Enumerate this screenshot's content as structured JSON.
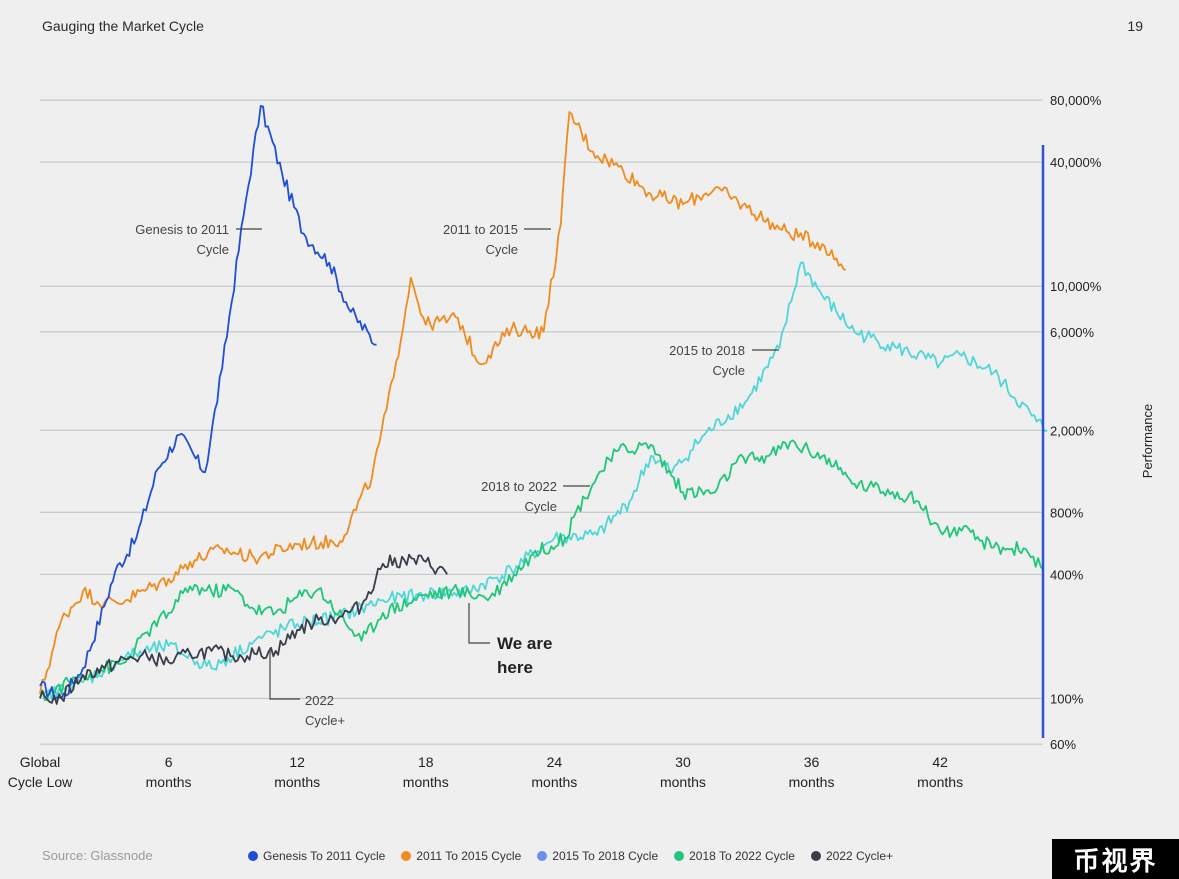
{
  "header": {
    "title": "Gauging the Market Cycle",
    "page_number": "19"
  },
  "footer": {
    "source": "Source: Glassnode"
  },
  "watermark": {
    "text": "币视界"
  },
  "chart_data": {
    "type": "line",
    "ylabel": "Performance",
    "y_scale": "log",
    "y_ticks": [
      {
        "value": 60,
        "label": "60%"
      },
      {
        "value": 100,
        "label": "100%"
      },
      {
        "value": 400,
        "label": "400%"
      },
      {
        "value": 800,
        "label": "800%"
      },
      {
        "value": 2000,
        "label": "2,000%"
      },
      {
        "value": 6000,
        "label": "6,000%"
      },
      {
        "value": 10000,
        "label": "10,000%"
      },
      {
        "value": 40000,
        "label": "40,000%"
      },
      {
        "value": 80000,
        "label": "80,000%"
      }
    ],
    "x_ticks": [
      {
        "value": 0,
        "line1": "Global",
        "line2": "Cycle Low"
      },
      {
        "value": 6,
        "line1": "6",
        "line2": "months"
      },
      {
        "value": 12,
        "line1": "12",
        "line2": "months"
      },
      {
        "value": 18,
        "line1": "18",
        "line2": "months"
      },
      {
        "value": 24,
        "line1": "24",
        "line2": "months"
      },
      {
        "value": 30,
        "line1": "30",
        "line2": "months"
      },
      {
        "value": 36,
        "line1": "36",
        "line2": "months"
      },
      {
        "value": 42,
        "line1": "42",
        "line2": "months"
      }
    ],
    "xlim": [
      0,
      46.8
    ],
    "ylim": [
      60,
      100000
    ],
    "series": [
      {
        "name": "Genesis To 2011 Cycle",
        "color": "#1f4fd6",
        "points": [
          [
            0,
            115
          ],
          [
            1.0,
            100
          ],
          [
            2.0,
            140
          ],
          [
            3.0,
            280
          ],
          [
            3.5,
            410
          ],
          [
            4.5,
            600
          ],
          [
            5.5,
            1300
          ],
          [
            6.5,
            1900
          ],
          [
            7.7,
            1250
          ],
          [
            8.5,
            4000
          ],
          [
            9.5,
            22000
          ],
          [
            10.3,
            75000
          ],
          [
            11.3,
            35000
          ],
          [
            12.3,
            18000
          ],
          [
            13.5,
            13000
          ],
          [
            14.5,
            7500
          ],
          [
            15.7,
            5200
          ]
        ]
      },
      {
        "name": "2011 To 2015 Cycle",
        "color": "#f08c1e",
        "points": [
          [
            0,
            105
          ],
          [
            1.0,
            240
          ],
          [
            2.0,
            330
          ],
          [
            3.0,
            290
          ],
          [
            4.0,
            300
          ],
          [
            5.0,
            340
          ],
          [
            6.0,
            380
          ],
          [
            7.0,
            460
          ],
          [
            8.5,
            530
          ],
          [
            10.0,
            480
          ],
          [
            12.0,
            560
          ],
          [
            14.0,
            580
          ],
          [
            15.5,
            1200
          ],
          [
            16.5,
            3600
          ],
          [
            17.3,
            11000
          ],
          [
            18.0,
            6500
          ],
          [
            19.5,
            7000
          ],
          [
            20.5,
            4200
          ],
          [
            22.0,
            6200
          ],
          [
            23.5,
            6000
          ],
          [
            24.3,
            20000
          ],
          [
            24.7,
            70000
          ],
          [
            25.8,
            45000
          ],
          [
            27.0,
            38000
          ],
          [
            28.5,
            28000
          ],
          [
            30.0,
            25000
          ],
          [
            31.5,
            30000
          ],
          [
            33.0,
            24000
          ],
          [
            34.5,
            19000
          ],
          [
            36.5,
            16000
          ],
          [
            37.6,
            12000
          ]
        ]
      },
      {
        "name": "2015 To 2018 Cycle",
        "color": "#4fd6d8",
        "points": [
          [
            0,
            100
          ],
          [
            2.0,
            120
          ],
          [
            4.0,
            160
          ],
          [
            6.0,
            180
          ],
          [
            8.0,
            140
          ],
          [
            10.0,
            190
          ],
          [
            12.0,
            230
          ],
          [
            14.0,
            250
          ],
          [
            16.0,
            300
          ],
          [
            18.0,
            320
          ],
          [
            20.0,
            330
          ],
          [
            22.0,
            420
          ],
          [
            24.0,
            600
          ],
          [
            26.0,
            620
          ],
          [
            27.5,
            900
          ],
          [
            28.5,
            1500
          ],
          [
            29.5,
            1250
          ],
          [
            31.0,
            1900
          ],
          [
            33.0,
            2800
          ],
          [
            34.5,
            5000
          ],
          [
            35.5,
            13000
          ],
          [
            36.5,
            9000
          ],
          [
            38.0,
            6000
          ],
          [
            40.0,
            5000
          ],
          [
            42.0,
            4200
          ],
          [
            43.0,
            4600
          ],
          [
            44.5,
            3800
          ],
          [
            46.5,
            2200
          ],
          [
            47.0,
            2000
          ]
        ]
      },
      {
        "name": "2018 To 2022 Cycle",
        "color": "#1ec878",
        "points": [
          [
            0,
            100
          ],
          [
            2.0,
            130
          ],
          [
            4.0,
            150
          ],
          [
            5.0,
            210
          ],
          [
            6.0,
            260
          ],
          [
            7.0,
            350
          ],
          [
            8.0,
            330
          ],
          [
            9.0,
            340
          ],
          [
            10.0,
            270
          ],
          [
            11.0,
            260
          ],
          [
            12.0,
            310
          ],
          [
            13.0,
            340
          ],
          [
            15.0,
            190
          ],
          [
            16.0,
            260
          ],
          [
            18.0,
            320
          ],
          [
            19.5,
            330
          ],
          [
            21.0,
            310
          ],
          [
            23.0,
            500
          ],
          [
            24.5,
            600
          ],
          [
            25.0,
            800
          ],
          [
            26.0,
            1200
          ],
          [
            27.0,
            1600
          ],
          [
            28.5,
            1700
          ],
          [
            30.0,
            1000
          ],
          [
            31.5,
            1000
          ],
          [
            32.5,
            1400
          ],
          [
            34.0,
            1500
          ],
          [
            35.0,
            1750
          ],
          [
            36.5,
            1500
          ],
          [
            38.0,
            1100
          ],
          [
            40.0,
            1000
          ],
          [
            41.0,
            900
          ],
          [
            42.0,
            650
          ],
          [
            43.0,
            650
          ],
          [
            44.5,
            540
          ],
          [
            46.0,
            530
          ],
          [
            46.8,
            420
          ]
        ]
      },
      {
        "name": "2022 Cycle+",
        "color": "#3a3d4a",
        "points": [
          [
            0,
            100
          ],
          [
            1.0,
            100
          ],
          [
            2.0,
            130
          ],
          [
            3.0,
            140
          ],
          [
            4.0,
            155
          ],
          [
            5.0,
            160
          ],
          [
            6.0,
            150
          ],
          [
            7.0,
            165
          ],
          [
            8.0,
            170
          ],
          [
            9.0,
            160
          ],
          [
            10.0,
            165
          ],
          [
            11.0,
            170
          ],
          [
            12.0,
            215
          ],
          [
            13.0,
            240
          ],
          [
            14.0,
            250
          ],
          [
            15.0,
            280
          ],
          [
            16.0,
            450
          ],
          [
            17.0,
            470
          ],
          [
            18.0,
            460
          ],
          [
            19.0,
            400
          ]
        ]
      }
    ],
    "annotations": [
      {
        "line1": "Genesis to 2011",
        "line2": "Cycle"
      },
      {
        "line1": "2011 to 2015",
        "line2": "Cycle"
      },
      {
        "line1": "2015 to 2018",
        "line2": "Cycle"
      },
      {
        "line1": "2018 to 2022",
        "line2": "Cycle"
      },
      {
        "line1": "2022",
        "line2": "Cycle+"
      },
      {
        "line1": "We are",
        "line2": "here"
      }
    ],
    "legend_position": "bottom"
  }
}
